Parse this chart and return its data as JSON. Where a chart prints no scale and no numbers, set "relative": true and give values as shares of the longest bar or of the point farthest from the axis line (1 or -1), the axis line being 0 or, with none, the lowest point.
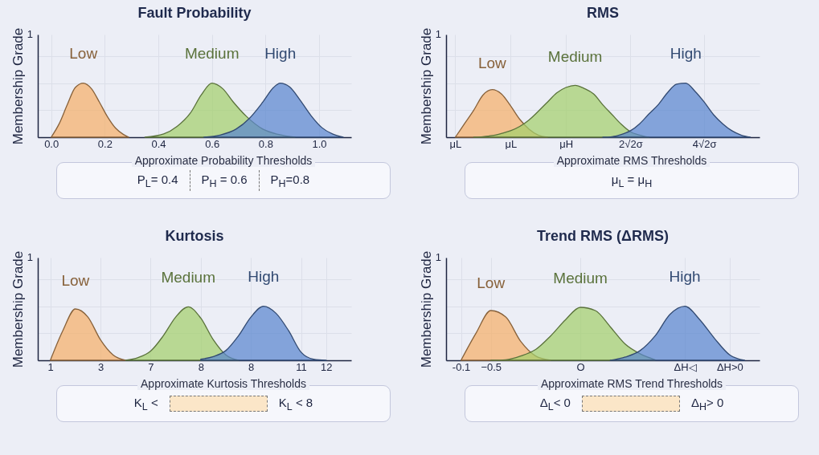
{
  "chart_data": [
    {
      "type": "area",
      "title": "Fault Probability",
      "ylabel": "Membership Grade",
      "relative": true,
      "grid": true,
      "xlim": [
        -0.05,
        1.12
      ],
      "xticks": [
        {
          "value": 0,
          "label": "0.0"
        },
        0.2,
        0.4,
        0.6,
        0.8,
        {
          "value": 1,
          "label": "1.0"
        }
      ],
      "annotations": [
        "1",
        "Approximate Probability Thresholds",
        "P$_{L}$= 0.4",
        "P$_{H}$ = 0.6",
        "P$_{H}$=0.8"
      ],
      "series": [
        {
          "name": "Low",
          "color": "#f5b06a",
          "x": [
            0,
            0.03,
            0.06,
            0.09,
            0.12,
            0.15,
            0.18,
            0.21,
            0.24,
            0.27,
            0.29
          ],
          "values": [
            0,
            0.25,
            0.6,
            0.92,
            1,
            0.9,
            0.65,
            0.38,
            0.17,
            0.05,
            0
          ]
        },
        {
          "name": "Medium",
          "color": "#a3d06c",
          "x": [
            0.35,
            0.42,
            0.47,
            0.52,
            0.56,
            0.6,
            0.64,
            0.68,
            0.73,
            0.79,
            0.85,
            0.91
          ],
          "values": [
            0,
            0.06,
            0.2,
            0.45,
            0.78,
            1,
            0.9,
            0.65,
            0.38,
            0.15,
            0.05,
            0
          ]
        },
        {
          "name": "High",
          "color": "#5a86cf",
          "x": [
            0.57,
            0.63,
            0.69,
            0.74,
            0.79,
            0.83,
            0.855,
            0.89,
            0.93,
            0.97,
            1.01,
            1.05,
            1.09
          ],
          "values": [
            0,
            0.04,
            0.15,
            0.35,
            0.65,
            0.92,
            1,
            0.93,
            0.68,
            0.4,
            0.18,
            0.06,
            0
          ]
        }
      ]
    },
    {
      "type": "area",
      "title": "RMS",
      "ylabel": "Membership Grade",
      "relative": true,
      "grid": true,
      "categories": [
        "μL",
        null,
        null,
        null,
        null,
        null,
        "μL",
        null,
        null,
        null,
        null,
        null,
        "μH",
        null,
        null,
        null,
        null,
        null,
        null,
        "2√2σ",
        null,
        null,
        null,
        null,
        null,
        null,
        null,
        "4√2σ",
        null,
        null,
        null,
        null,
        null
      ],
      "annotations": [
        "1",
        "Approximate RMS Thresholds",
        "μ$_{L}$ = μ$_{H}$"
      ],
      "series": [
        {
          "name": "Low",
          "color": "#f5b06a",
          "values": [
            0,
            0.25,
            0.5,
            0.78,
            0.88,
            0.8,
            0.58,
            0.33,
            0.15,
            0.04,
            0,
            null,
            null,
            null,
            null,
            null,
            null,
            null,
            null,
            null,
            null,
            null,
            null,
            null,
            null,
            null,
            null,
            null,
            null,
            null,
            null,
            null,
            null
          ]
        },
        {
          "name": "Medium",
          "color": "#a3d06c",
          "values": [
            null,
            null,
            0,
            0.01,
            0.03,
            0.07,
            0.12,
            0.2,
            0.32,
            0.48,
            0.65,
            0.82,
            0.92,
            0.96,
            0.9,
            0.8,
            0.6,
            0.42,
            0.24,
            0.1,
            0.04,
            0,
            null,
            null,
            null,
            null,
            null,
            null,
            null,
            null,
            null,
            null,
            null
          ]
        },
        {
          "name": "High",
          "color": "#5a86cf",
          "values": [
            null,
            null,
            null,
            null,
            null,
            null,
            null,
            null,
            null,
            null,
            null,
            null,
            null,
            null,
            null,
            null,
            0,
            0.01,
            0.05,
            0.12,
            0.25,
            0.43,
            0.6,
            0.82,
            0.98,
            1,
            0.85,
            0.65,
            0.42,
            0.25,
            0.12,
            0.04,
            0
          ]
        }
      ]
    },
    {
      "type": "area",
      "title": "Kurtosis",
      "ylabel": "Membership Grade",
      "relative": true,
      "grid": true,
      "categories": [
        "1",
        null,
        null,
        null,
        "3",
        null,
        null,
        null,
        "7",
        null,
        null,
        null,
        "8",
        null,
        null,
        null,
        "8",
        null,
        null,
        null,
        "11",
        null,
        "12",
        null
      ],
      "annotations": [
        "1",
        "Approximate Kurtosis Thresholds",
        "K$_{L}$ <",
        "K$_{L}$ < 8"
      ],
      "series": [
        {
          "name": "Low",
          "color": "#f5b06a",
          "values": [
            0,
            0.55,
            0.95,
            0.8,
            0.38,
            0.1,
            0,
            null,
            null,
            null,
            null,
            null,
            null,
            null,
            null,
            null,
            null,
            null,
            null,
            null,
            null,
            null,
            null,
            null
          ]
        },
        {
          "name": "Medium",
          "color": "#a3d06c",
          "values": [
            null,
            null,
            null,
            null,
            null,
            null,
            0,
            0.05,
            0.17,
            0.45,
            0.8,
            0.99,
            0.78,
            0.38,
            0.1,
            0,
            null,
            null,
            null,
            null,
            null,
            null,
            null,
            null
          ]
        },
        {
          "name": "High",
          "color": "#5a86cf",
          "values": [
            null,
            null,
            null,
            null,
            null,
            null,
            null,
            null,
            null,
            null,
            null,
            null,
            0.02,
            0.07,
            0.18,
            0.45,
            0.8,
            1,
            0.87,
            0.55,
            0.15,
            0.02,
            0,
            null
          ]
        }
      ]
    },
    {
      "type": "area",
      "title": "Trend RMS (ΔRMS)",
      "ylabel": "Membership Grade",
      "relative": true,
      "grid": true,
      "categories": [
        "-0.1",
        null,
        "−0.5",
        null,
        null,
        null,
        null,
        null,
        "O",
        null,
        null,
        null,
        null,
        null,
        null,
        "ΔH◁",
        null,
        null,
        "ΔH>0",
        null
      ],
      "annotations": [
        "1",
        "Approximate RMS Trend Thresholds",
        "Δ$_{L}$< 0",
        "Δ$_{H}$> 0"
      ],
      "series": [
        {
          "name": "Low",
          "color": "#f5b06a",
          "values": [
            0,
            0.5,
            0.92,
            0.8,
            0.35,
            0.08,
            0,
            null,
            null,
            null,
            null,
            null,
            null,
            null,
            null,
            null,
            null,
            null,
            null,
            null
          ]
        },
        {
          "name": "Medium",
          "color": "#a3d06c",
          "values": [
            null,
            null,
            0,
            0.01,
            0.08,
            0.2,
            0.45,
            0.75,
            0.98,
            0.92,
            0.62,
            0.3,
            0.12,
            0.01,
            null,
            null,
            null,
            null,
            null,
            null
          ]
        },
        {
          "name": "High",
          "color": "#5a86cf",
          "values": [
            null,
            null,
            null,
            null,
            null,
            null,
            null,
            null,
            null,
            null,
            0,
            0.06,
            0.18,
            0.45,
            0.85,
            1,
            0.75,
            0.4,
            0.1,
            0
          ]
        }
      ]
    }
  ]
}
